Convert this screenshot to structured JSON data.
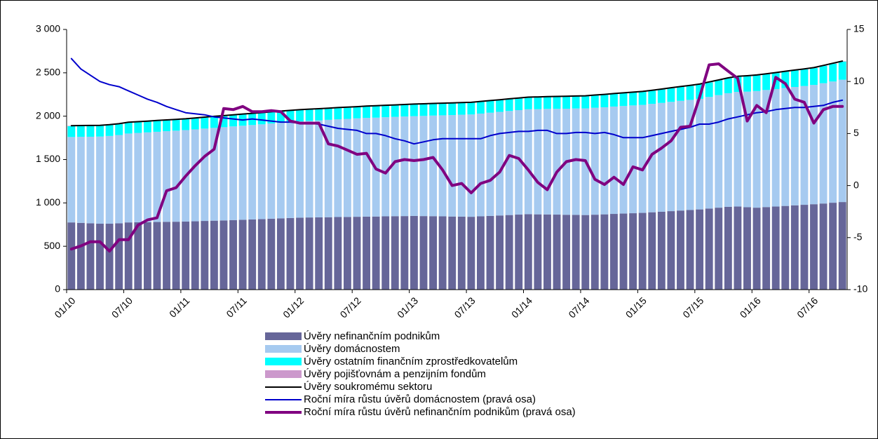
{
  "chart_data": {
    "type": "bar",
    "categories": [
      "01/10",
      null,
      null,
      null,
      null,
      null,
      "07/10",
      null,
      null,
      null,
      null,
      null,
      "01/11",
      null,
      null,
      null,
      null,
      null,
      "07/11",
      null,
      null,
      null,
      null,
      null,
      "01/12",
      null,
      null,
      null,
      null,
      null,
      "07/12",
      null,
      null,
      null,
      null,
      null,
      "01/13",
      null,
      null,
      null,
      null,
      null,
      "07/13",
      null,
      null,
      null,
      null,
      null,
      "01/14",
      null,
      null,
      null,
      null,
      null,
      "07/14",
      null,
      null,
      null,
      null,
      null,
      "01/15",
      null,
      null,
      null,
      null,
      null,
      "07/15",
      null,
      null,
      null,
      null,
      null,
      "01/16",
      null,
      null,
      null,
      null,
      null,
      "07/16",
      null,
      null,
      null
    ],
    "series": [
      {
        "name": "Úvěry nefinančním podnikům",
        "type": "bar",
        "color": "#666699",
        "values": [
          775,
          770,
          765,
          760,
          760,
          765,
          775,
          777,
          778,
          780,
          782,
          783,
          785,
          788,
          792,
          795,
          798,
          802,
          805,
          809,
          813,
          818,
          822,
          826,
          830,
          832,
          833,
          835,
          837,
          838,
          840,
          842,
          843,
          845,
          847,
          848,
          850,
          848,
          847,
          845,
          843,
          842,
          840,
          845,
          850,
          855,
          860,
          865,
          870,
          868,
          867,
          865,
          863,
          862,
          860,
          864,
          868,
          873,
          877,
          881,
          885,
          892,
          898,
          905,
          912,
          918,
          925,
          935,
          945,
          955,
          958,
          950,
          945,
          952,
          958,
          965,
          972,
          978,
          985,
          993,
          1002,
          1010
        ]
      },
      {
        "name": "Úvěry domácnostem",
        "type": "bar",
        "color": "#a6caf0",
        "values": [
          985,
          992,
          998,
          1005,
          1012,
          1018,
          1025,
          1030,
          1035,
          1040,
          1045,
          1050,
          1055,
          1060,
          1065,
          1070,
          1075,
          1080,
          1085,
          1089,
          1093,
          1098,
          1102,
          1106,
          1110,
          1114,
          1118,
          1123,
          1127,
          1131,
          1135,
          1138,
          1140,
          1143,
          1145,
          1148,
          1150,
          1155,
          1160,
          1165,
          1170,
          1175,
          1180,
          1185,
          1190,
          1195,
          1200,
          1205,
          1210,
          1213,
          1217,
          1220,
          1223,
          1227,
          1230,
          1233,
          1235,
          1238,
          1240,
          1243,
          1245,
          1250,
          1255,
          1260,
          1265,
          1270,
          1275,
          1287,
          1298,
          1310,
          1322,
          1333,
          1345,
          1350,
          1355,
          1360,
          1365,
          1370,
          1375,
          1387,
          1398,
          1410
        ]
      },
      {
        "name": "Úvěry ostatním finančním zprostředkovatelům",
        "type": "bar",
        "color": "#00ffff",
        "values": [
          125,
          125,
          125,
          125,
          125,
          125,
          125,
          125,
          125,
          125,
          125,
          125,
          125,
          126,
          127,
          128,
          128,
          129,
          130,
          130,
          130,
          130,
          130,
          130,
          130,
          130,
          130,
          130,
          130,
          130,
          130,
          131,
          132,
          133,
          133,
          134,
          135,
          135,
          135,
          135,
          135,
          135,
          135,
          135,
          135,
          135,
          135,
          135,
          135,
          136,
          137,
          138,
          138,
          139,
          140,
          142,
          143,
          145,
          147,
          148,
          150,
          152,
          155,
          158,
          160,
          162,
          165,
          168,
          170,
          172,
          175,
          178,
          180,
          182,
          185,
          188,
          190,
          192,
          195,
          200,
          205,
          210
        ]
      },
      {
        "name": "Úvěry pojišťovnám a penzijním fondům",
        "type": "bar",
        "color": "#cc99cc",
        "values": [
          5,
          5,
          5,
          5,
          5,
          5,
          5,
          5,
          5,
          5,
          5,
          5,
          5,
          5,
          5,
          5,
          5,
          5,
          5,
          5,
          5,
          5,
          5,
          5,
          5,
          5,
          5,
          5,
          5,
          5,
          5,
          5,
          5,
          5,
          5,
          5,
          5,
          5,
          5,
          5,
          5,
          5,
          5,
          5,
          5,
          5,
          5,
          5,
          5,
          5,
          5,
          5,
          5,
          5,
          5,
          5,
          5,
          5,
          5,
          5,
          5,
          5,
          5,
          5,
          5,
          5,
          5,
          5,
          5,
          5,
          5,
          5,
          5,
          5,
          5,
          5,
          5,
          5,
          5,
          5,
          5,
          5
        ]
      },
      {
        "name": "Úvěry soukromému sektoru",
        "type": "line",
        "color": "#000000",
        "width": 2,
        "values": [
          1890,
          1892,
          1893,
          1895,
          1902,
          1913,
          1930,
          1937,
          1943,
          1950,
          1957,
          1963,
          1970,
          1979,
          1989,
          1998,
          2006,
          2016,
          2025,
          2033,
          2041,
          2051,
          2059,
          2067,
          2075,
          2081,
          2086,
          2093,
          2099,
          2104,
          2110,
          2116,
          2120,
          2126,
          2130,
          2135,
          2140,
          2143,
          2147,
          2150,
          2153,
          2157,
          2160,
          2170,
          2180,
          2190,
          2200,
          2210,
          2220,
          2222,
          2226,
          2228,
          2229,
          2233,
          2235,
          2244,
          2251,
          2261,
          2269,
          2277,
          2285,
          2299,
          2313,
          2328,
          2342,
          2355,
          2370,
          2395,
          2418,
          2442,
          2460,
          2466,
          2475,
          2489,
          2503,
          2518,
          2532,
          2545,
          2560,
          2585,
          2610,
          2635
        ]
      },
      {
        "name": "Roční míra růstu úvěrů domácnostem (pravá osa)",
        "type": "line",
        "axis": "y2",
        "color": "#0000cc",
        "width": 2,
        "values": [
          12.2,
          11.2,
          10.6,
          10.0,
          9.7,
          9.5,
          9.1,
          8.7,
          8.3,
          8.0,
          7.6,
          7.3,
          7.0,
          6.9,
          6.8,
          6.6,
          6.5,
          6.4,
          6.3,
          6.4,
          6.3,
          6.2,
          6.1,
          6.1,
          6.0,
          6.0,
          5.9,
          5.7,
          5.5,
          5.4,
          5.3,
          5.0,
          5.0,
          4.8,
          4.5,
          4.3,
          4.0,
          4.2,
          4.4,
          4.5,
          4.5,
          4.5,
          4.5,
          4.5,
          4.8,
          5.0,
          5.1,
          5.2,
          5.2,
          5.3,
          5.3,
          5.0,
          5.0,
          5.1,
          5.1,
          5.0,
          5.1,
          4.9,
          4.6,
          4.6,
          4.6,
          4.8,
          5.0,
          5.2,
          5.4,
          5.6,
          5.9,
          5.9,
          6.1,
          6.4,
          6.6,
          6.8,
          7.0,
          7.1,
          7.3,
          7.4,
          7.5,
          7.5,
          7.6,
          7.7,
          8.0,
          8.2
        ]
      },
      {
        "name": "Roční míra růstu úvěrů nefinančním podnikům (pravá osa)",
        "type": "line",
        "axis": "y2",
        "color": "#800080",
        "width": 4,
        "values": [
          -6.1,
          -5.8,
          -5.4,
          -5.4,
          -6.3,
          -5.2,
          -5.2,
          -3.8,
          -3.3,
          -3.1,
          -0.5,
          -0.2,
          0.9,
          1.9,
          2.8,
          3.5,
          7.4,
          7.3,
          7.6,
          7.1,
          7.1,
          7.2,
          7.1,
          6.2,
          6.0,
          6.0,
          6.0,
          4.0,
          3.8,
          3.4,
          3.0,
          3.1,
          1.6,
          1.2,
          2.3,
          2.5,
          2.4,
          2.5,
          2.7,
          1.5,
          0.0,
          0.2,
          -0.7,
          0.2,
          0.5,
          1.3,
          2.9,
          2.6,
          1.5,
          0.3,
          -0.4,
          1.3,
          2.3,
          2.5,
          2.4,
          0.6,
          0.1,
          0.8,
          0.1,
          1.8,
          1.5,
          3.0,
          3.6,
          4.3,
          5.6,
          5.7,
          8.5,
          11.6,
          11.7,
          11.0,
          10.3,
          6.2,
          7.7,
          7.0,
          10.4,
          9.8,
          8.3,
          8.0,
          6.0,
          7.3,
          7.6,
          7.6
        ]
      }
    ],
    "ylim": [
      0,
      3000
    ],
    "yticks": [
      0,
      500,
      {
        "value": 1000,
        "label": "1 000"
      },
      {
        "value": 1500,
        "label": "1 500"
      },
      {
        "value": 2000,
        "label": "2 000"
      },
      {
        "value": 2500,
        "label": "2 500"
      },
      {
        "value": 3000,
        "label": "3 000"
      }
    ],
    "y2lim": [
      -10,
      15
    ],
    "y2ticks": [
      -10,
      -5,
      0,
      5,
      10,
      15
    ],
    "grid": false,
    "legend": "bottom"
  }
}
